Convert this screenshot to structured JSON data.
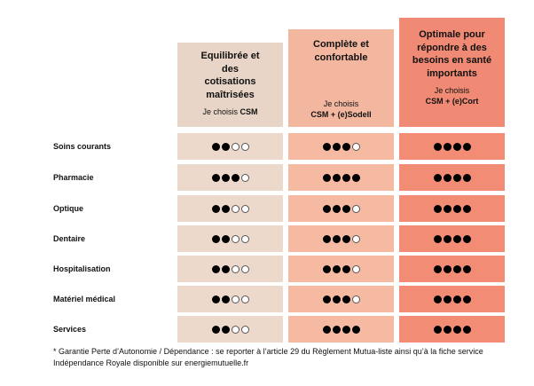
{
  "colors": {
    "col1_header": "#e8d5c7",
    "col1_cell": "#ecd9cb",
    "col2_header": "#f3b7a0",
    "col2_cell": "#f6baa3",
    "col3_header": "#f08a74",
    "col3_cell": "#f28c75"
  },
  "columns": [
    {
      "title": "Equilibrée et des cotisations maîtrisées",
      "sub_prefix": "Je choisis",
      "sub_product": "CSM"
    },
    {
      "title": "Complète et confortable",
      "sub_prefix": "Je choisis",
      "sub_product": "CSM + (e)Sodell"
    },
    {
      "title": "Optimale pour répondre à des besoins en santé importants",
      "sub_prefix": "Je choisis",
      "sub_product": "CSM + (e)Cort"
    }
  ],
  "rows": [
    {
      "label": "Soins courants",
      "ratings": [
        2,
        3,
        4
      ]
    },
    {
      "label": "Pharmacie",
      "ratings": [
        3,
        4,
        4
      ]
    },
    {
      "label": "Optique",
      "ratings": [
        2,
        3,
        4
      ]
    },
    {
      "label": "Dentaire",
      "ratings": [
        2,
        3,
        4
      ]
    },
    {
      "label": "Hospitalisation",
      "ratings": [
        2,
        3,
        4
      ]
    },
    {
      "label": "Matériel médical",
      "ratings": [
        2,
        3,
        4
      ]
    },
    {
      "label": "Services",
      "ratings": [
        2,
        4,
        4
      ]
    }
  ],
  "max_rating": 4,
  "footnote": "* Garantie Perte d’Autonomie / Dépendance : se reporter à l’article 29 du Règlement Mutua-liste ainsi qu’à la fiche service Indépendance Royale disponible sur energiemutuelle.fr"
}
